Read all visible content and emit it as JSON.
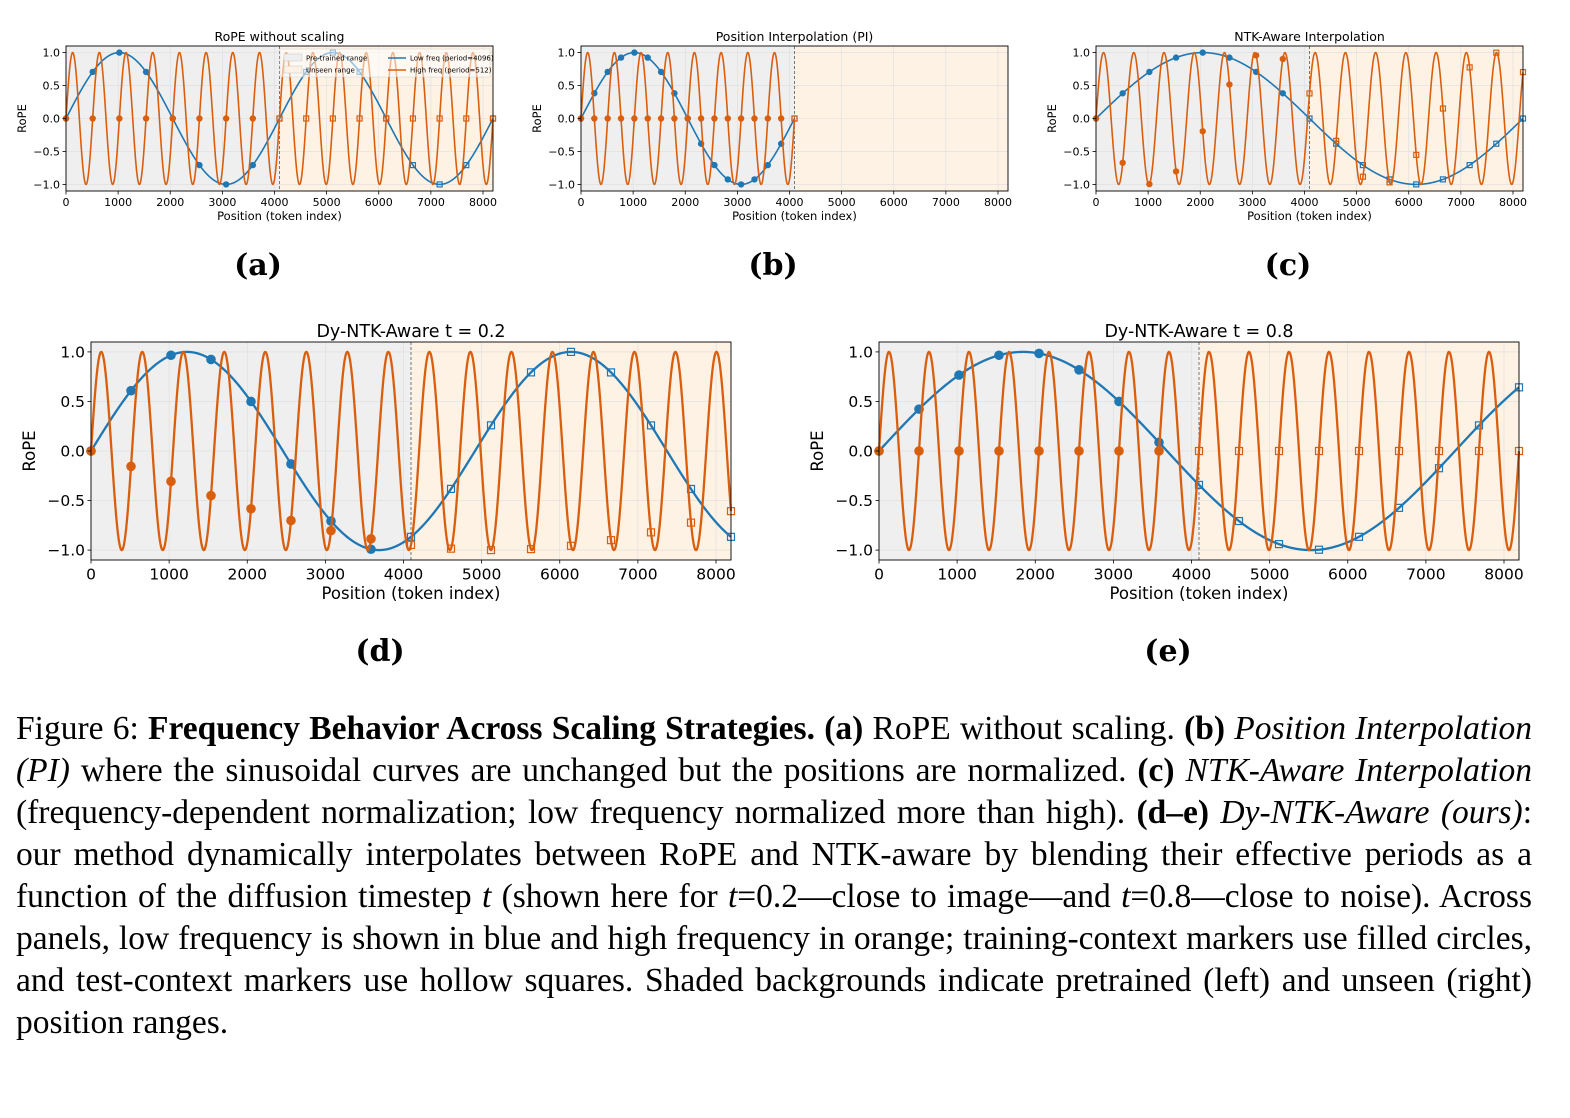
{
  "chart_data": [
    {
      "id": "a",
      "type": "line",
      "title": "RoPE without scaling",
      "xlabel": "Position (token index)",
      "ylabel": "RoPE",
      "xlim": [
        0,
        8192
      ],
      "ylim": [
        -1.1,
        1.1
      ],
      "xticks": [
        "0",
        "1000",
        "2000",
        "3000",
        "4000",
        "5000",
        "6000",
        "7000",
        "8000"
      ],
      "yticks": [
        "1.0",
        "0.5",
        "0.0",
        "−0.5",
        "−1.0"
      ],
      "pretrained_range": [
        0,
        4096
      ],
      "unseen_range": [
        4096,
        8192
      ],
      "legend": [
        "Pre-trained range",
        "Unseen range",
        "Low freq (period=4096)",
        "High freq (period=512)"
      ],
      "series": [
        {
          "name": "Low freq (period=4096)",
          "color": "#1f77b4",
          "period": 4096
        },
        {
          "name": "High freq (period=512)",
          "color": "#d95f0e",
          "period": 512
        }
      ],
      "marker_spacing": 512,
      "label": "(a)"
    },
    {
      "id": "b",
      "type": "line",
      "title": "Position Interpolation (PI)",
      "xlabel": "Position (token index)",
      "ylabel": "RoPE",
      "xlim": [
        0,
        8192
      ],
      "ylim": [
        -1.1,
        1.1
      ],
      "xticks": [
        "0",
        "1000",
        "2000",
        "3000",
        "4000",
        "5000",
        "6000",
        "7000",
        "8000"
      ],
      "yticks": [
        "1.0",
        "0.5",
        "0.0",
        "−0.5",
        "−1.0"
      ],
      "pretrained_range": [
        0,
        4096
      ],
      "unseen_range": [
        4096,
        8192
      ],
      "series": [
        {
          "name": "Low freq",
          "color": "#1f77b4",
          "period": 4096,
          "max_x": 4096
        },
        {
          "name": "High freq",
          "color": "#d95f0e",
          "period": 512,
          "max_x": 4096
        }
      ],
      "marker_spacing": 256,
      "label": "(b)"
    },
    {
      "id": "c",
      "type": "line",
      "title": "NTK-Aware Interpolation",
      "xlabel": "Position (token index)",
      "ylabel": "RoPE",
      "xlim": [
        0,
        8192
      ],
      "ylim": [
        -1.1,
        1.1
      ],
      "xticks": [
        "0",
        "1000",
        "2000",
        "3000",
        "4000",
        "5000",
        "6000",
        "7000",
        "8000"
      ],
      "yticks": [
        "1.0",
        "0.5",
        "0.0",
        "−0.5",
        "−1.0"
      ],
      "pretrained_range": [
        0,
        4096
      ],
      "unseen_range": [
        4096,
        8192
      ],
      "series": [
        {
          "name": "Low freq",
          "color": "#1f77b4",
          "period": 8192
        },
        {
          "name": "High freq",
          "color": "#d95f0e",
          "period": 580
        }
      ],
      "marker_spacing": 512,
      "label": "(c)"
    },
    {
      "id": "d",
      "type": "line",
      "title": "Dy-NTK-Aware t = 0.2",
      "xlabel": "Position (token index)",
      "ylabel": "RoPE",
      "xlim": [
        0,
        8192
      ],
      "ylim": [
        -1.1,
        1.1
      ],
      "xticks": [
        "0",
        "1000",
        "2000",
        "3000",
        "4000",
        "5000",
        "6000",
        "7000",
        "8000"
      ],
      "yticks": [
        "1.0",
        "0.5",
        "0.0",
        "−0.5",
        "−1.0"
      ],
      "pretrained_range": [
        0,
        4096
      ],
      "unseen_range": [
        4096,
        8192
      ],
      "series": [
        {
          "name": "Low freq",
          "color": "#1f77b4",
          "period": 4915
        },
        {
          "name": "High freq",
          "color": "#d95f0e",
          "period": 525
        }
      ],
      "marker_spacing": 512,
      "label": "(d)"
    },
    {
      "id": "e",
      "type": "line",
      "title": "Dy-NTK-Aware t = 0.8",
      "xlabel": "Position (token index)",
      "ylabel": "RoPE",
      "xlim": [
        0,
        8192
      ],
      "ylim": [
        -1.1,
        1.1
      ],
      "xticks": [
        "0",
        "1000",
        "2000",
        "3000",
        "4000",
        "5000",
        "6000",
        "7000",
        "8000"
      ],
      "yticks": [
        "1.0",
        "0.5",
        "0.0",
        "−0.5",
        "−1.0"
      ],
      "pretrained_range": [
        0,
        4096
      ],
      "unseen_range": [
        4096,
        8192
      ],
      "series": [
        {
          "name": "Low freq",
          "color": "#1f77b4",
          "period": 7373
        },
        {
          "name": "High freq",
          "color": "#d95f0e",
          "period": 512
        }
      ],
      "marker_spacing": 512,
      "label": "(e)"
    }
  ],
  "colors": {
    "pretrained_bg": "#efefef",
    "unseen_bg": "#fef2e4",
    "low": "#1f77b4",
    "high": "#d95f0e"
  },
  "caption": {
    "prefix": "Figure 6: ",
    "title": "Frequency Behavior Across Scaling Strategies.",
    "a_label": "(a)",
    "a_text": " RoPE without scaling. ",
    "b_label": "(b)",
    "b_italic": "Position Interpolation (PI)",
    "b_text": " where the sinusoidal curves are unchanged but the positions are normalized. ",
    "c_label": "(c)",
    "c_italic": "NTK-Aware Interpolation",
    "c_text": " (frequency-dependent normalization; low frequency normalized more than high). ",
    "de_label": "(d–e)",
    "de_italic": "Dy-NTK-Aware (ours)",
    "de_text": ": our method dynamically interpolates between RoPE and NTK-aware by blending their effective periods as a function of the diffusion timestep ",
    "t1": "t",
    "de_text2": " (shown here for ",
    "t2": "t",
    "de_text3": "=0.2—close to image—and ",
    "t3": "t",
    "de_text4": "=0.8—close to noise). Across panels, low frequency is shown in blue and high frequency in orange; training-context markers use filled circles, and test-context markers use hollow squares. Shaded backgrounds indicate pretrained (left) and unseen (right) position ranges."
  }
}
